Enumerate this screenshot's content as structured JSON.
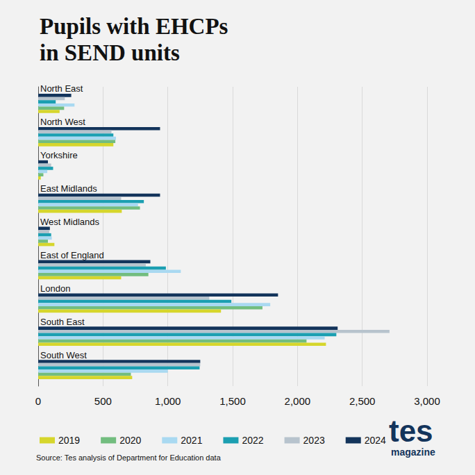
{
  "chart_data": {
    "type": "bar",
    "orientation": "horizontal",
    "title": "Pupils with EHCPs\nin SEND units",
    "source": "Source: Tes analysis of Department for Education data",
    "logo": [
      "tes",
      "magazine"
    ],
    "categories": [
      "North East",
      "North West",
      "Yorkshire",
      "East Midlands",
      "West Midlands",
      "East of England",
      "London",
      "South East",
      "South West"
    ],
    "series": [
      {
        "name": "2019",
        "color": "#d6d62c",
        "values": [
          165,
          580,
          20,
          645,
          125,
          640,
          1410,
          2220,
          725
        ]
      },
      {
        "name": "2020",
        "color": "#72bd7f",
        "values": [
          200,
          595,
          40,
          785,
          75,
          850,
          1730,
          2070,
          715
        ]
      },
      {
        "name": "2021",
        "color": "#a9d9f1",
        "values": [
          280,
          600,
          70,
          770,
          105,
          1100,
          1790,
          2210,
          1000
        ]
      },
      {
        "name": "2022",
        "color": "#1b9fb1",
        "values": [
          135,
          580,
          115,
          815,
          100,
          985,
          1490,
          2300,
          1245
        ]
      },
      {
        "name": "2023",
        "color": "#b7c3cd",
        "values": [
          205,
          565,
          100,
          640,
          85,
          830,
          1320,
          2710,
          1250
        ]
      },
      {
        "name": "2024",
        "color": "#13345b",
        "values": [
          255,
          940,
          75,
          940,
          90,
          865,
          1850,
          2310,
          1250
        ]
      }
    ],
    "xlim": [
      0,
      3000
    ],
    "xticks": [
      0,
      500,
      {
        "value": 1000,
        "label": "1,000"
      },
      {
        "value": 1500,
        "label": "1,500"
      },
      {
        "value": 2000,
        "label": "2,000"
      },
      {
        "value": 2500,
        "label": "2,500"
      },
      {
        "value": 3000,
        "label": "3,000"
      }
    ],
    "grid": true,
    "legend": "bottom"
  }
}
